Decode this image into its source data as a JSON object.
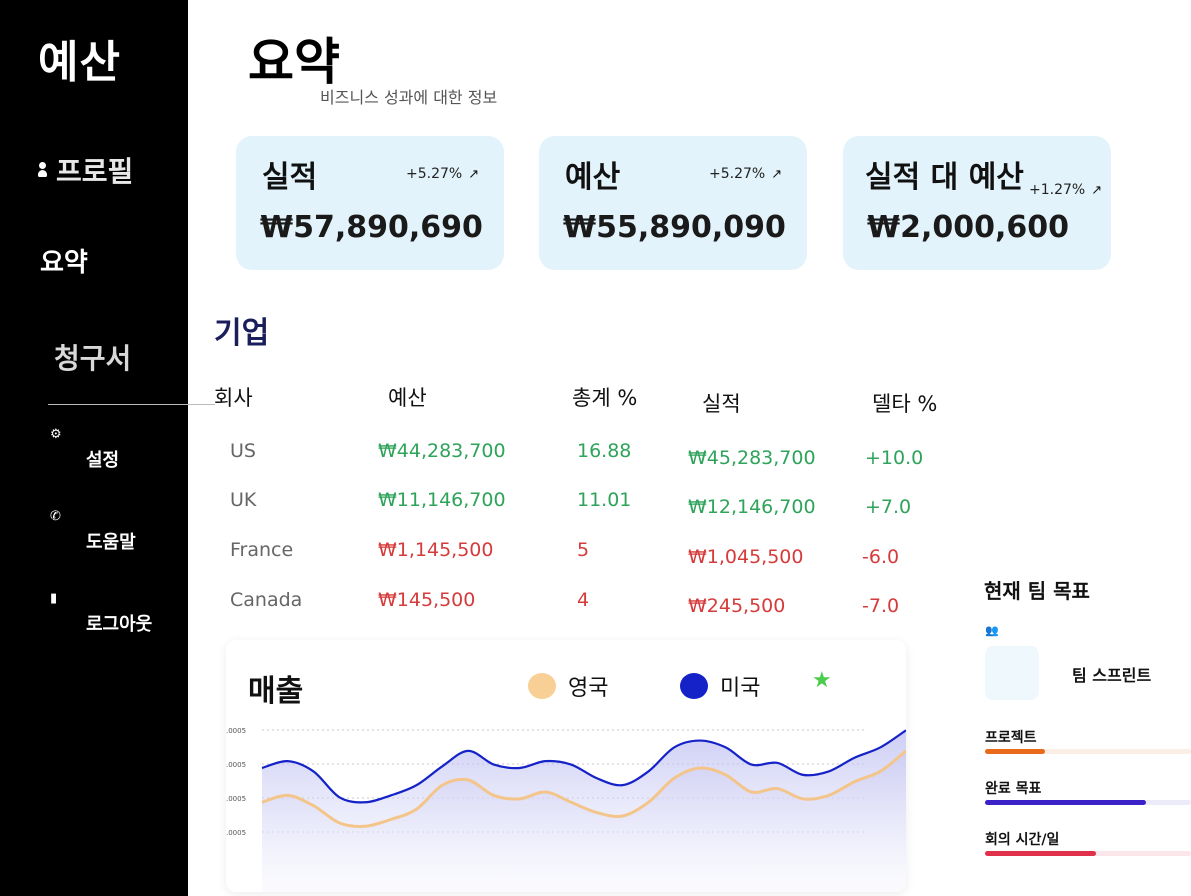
{
  "sidebar": {
    "brand": "예산",
    "profile": "프로필",
    "summary": "요약",
    "invoice": "청구서",
    "settings": "설정",
    "help": "도움말",
    "logout": "로그아웃"
  },
  "header": {
    "title": "요약",
    "subtitle": "비즈니스 성과에 대한 정보"
  },
  "cards": [
    {
      "title": "실적",
      "delta": "+5.27%",
      "value": "₩57,890,690",
      "icon": "trend-up-icon"
    },
    {
      "title": "예산",
      "delta": "+5.27%",
      "value": "₩55,890,090",
      "icon": "trend-up-icon"
    },
    {
      "title": "실적 대 예산",
      "delta": "+1.27%",
      "value": "₩2,000,600",
      "icon": "trend-up-icon"
    }
  ],
  "companies": {
    "title": "기업",
    "headers": {
      "company": "회사",
      "budget": "예산",
      "total": "총계 %",
      "actual": "실적",
      "delta": "델타 %"
    },
    "rows": [
      {
        "company": "US",
        "budget": "₩44,283,700",
        "total": "16.88",
        "actual": "₩45,283,700",
        "delta": "+10.0"
      },
      {
        "company": "UK",
        "budget": "₩11,146,700",
        "total": "11.01",
        "actual": "₩12,146,700",
        "delta": "+7.0"
      },
      {
        "company": "France",
        "budget": "₩1,145,500",
        "total": "5",
        "actual": "₩1,045,500",
        "delta": "-6.0"
      },
      {
        "company": "Canada",
        "budget": "₩145,500",
        "total": "4",
        "actual": "₩245,500",
        "delta": "-7.0"
      }
    ]
  },
  "colors": {
    "positive": "#2ea35a",
    "negative": "#d63b3b",
    "uk": "#f8cf94",
    "us": "#1422c8"
  },
  "sales": {
    "title": "매출",
    "legend_uk": "영국",
    "legend_us": "미국",
    "ytick_labels": [
      ".0005",
      ".0005",
      ".0005",
      ".0005"
    ],
    "chart_data": {
      "type": "area",
      "title": "매출",
      "x": [
        0,
        1,
        2,
        3,
        4,
        5,
        6,
        7,
        8,
        9,
        10,
        11,
        12,
        13,
        14,
        15,
        16,
        17,
        18,
        19,
        20,
        21,
        22,
        23,
        24,
        25
      ],
      "series": [
        {
          "name": "미국",
          "values": [
            62,
            66,
            60,
            45,
            42,
            46,
            52,
            63,
            72,
            64,
            62,
            66,
            64,
            56,
            52,
            60,
            74,
            78,
            74,
            64,
            65,
            58,
            60,
            68,
            74,
            84
          ]
        },
        {
          "name": "영국",
          "values": [
            42,
            46,
            40,
            30,
            28,
            32,
            38,
            52,
            55,
            46,
            44,
            48,
            42,
            36,
            34,
            42,
            56,
            62,
            58,
            48,
            50,
            44,
            46,
            54,
            60,
            72
          ]
        }
      ]
    }
  },
  "goals": {
    "title": "현재 팀 목표",
    "team": "팀 스프린트",
    "items": [
      {
        "label": "프로젝트",
        "progress": 0.29,
        "color": "#e86a1a",
        "track": "#fbeee4"
      },
      {
        "label": "완료 목표",
        "progress": 0.78,
        "color": "#3a22c8",
        "track": "#ecebfa"
      },
      {
        "label": "회의 시간/일",
        "progress": 0.54,
        "color": "#e0304a",
        "track": "#fbe6ea"
      }
    ]
  }
}
